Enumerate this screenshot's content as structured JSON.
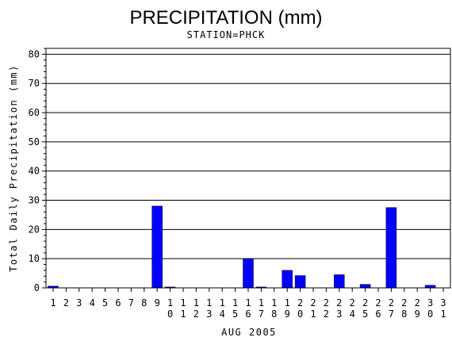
{
  "chart_data": {
    "type": "bar",
    "title": "PRECIPITATION (mm)",
    "subtitle": "STATION=PHCK",
    "xlabel": "AUG 2005",
    "ylabel": "Total Daily Precipitation (mm)",
    "ylim": [
      0,
      82
    ],
    "yticks": [
      0,
      10,
      20,
      30,
      40,
      50,
      60,
      70,
      80
    ],
    "grid": true,
    "bar_color": "#0000ff",
    "categories": [
      "1",
      "2",
      "3",
      "4",
      "5",
      "6",
      "7",
      "8",
      "9",
      "10",
      "11",
      "12",
      "13",
      "14",
      "15",
      "16",
      "17",
      "18",
      "19",
      "20",
      "21",
      "22",
      "23",
      "24",
      "25",
      "26",
      "27",
      "28",
      "29",
      "30",
      "31"
    ],
    "values": [
      0.6,
      0,
      0,
      0,
      0,
      0,
      0,
      0,
      28,
      0.3,
      0,
      0,
      0,
      0,
      0,
      10,
      0.3,
      0,
      6,
      4.2,
      0,
      0,
      4.5,
      0,
      1.2,
      0,
      27.5,
      0,
      0,
      0.9,
      0
    ]
  }
}
